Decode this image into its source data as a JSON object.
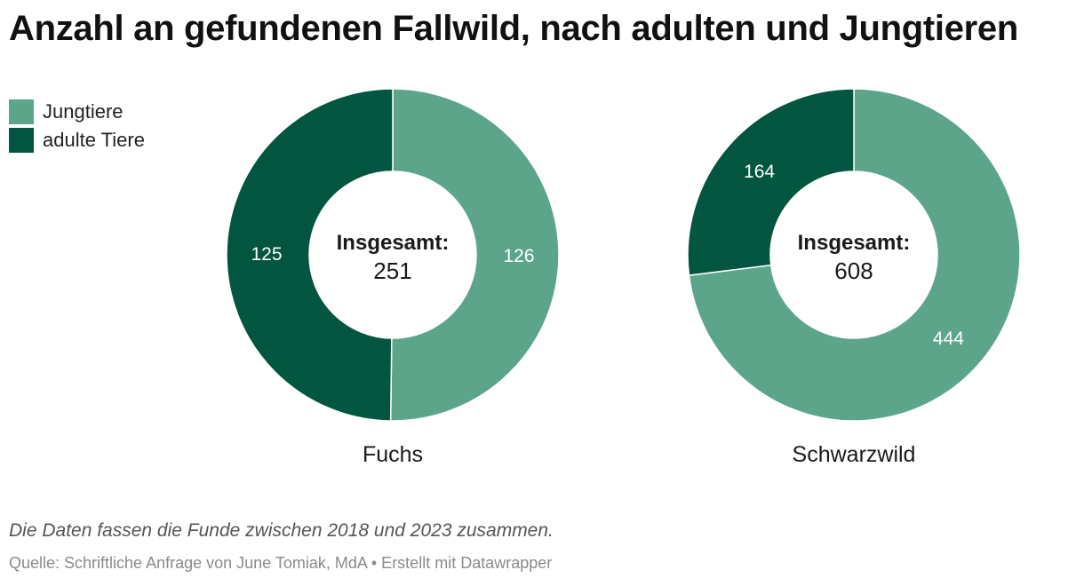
{
  "title": "Anzahl an gefundenen Fallwild, nach adulten und Jungtieren",
  "legend": [
    {
      "label": "Jungtiere",
      "color": "#5ca58a"
    },
    {
      "label": "adulte Tiere",
      "color": "#02553f"
    }
  ],
  "center_label": "Insgesamt:",
  "chart_data": [
    {
      "type": "pie",
      "name": "Fuchs",
      "total": 251,
      "slices": [
        {
          "label": "Jungtiere",
          "value": 126,
          "color": "#5ca58a"
        },
        {
          "label": "adulte Tiere",
          "value": 125,
          "color": "#02553f"
        }
      ]
    },
    {
      "type": "pie",
      "name": "Schwarzwild",
      "total": 608,
      "slices": [
        {
          "label": "Jungtiere",
          "value": 444,
          "color": "#5ca58a"
        },
        {
          "label": "adulte Tiere",
          "value": 164,
          "color": "#02553f"
        }
      ]
    }
  ],
  "footer": {
    "note": "Die Daten fassen die Funde zwischen 2018 und 2023 zusammen.",
    "source": "Quelle: Schriftliche Anfrage von June Tomiak, MdA • Erstellt mit Datawrapper"
  }
}
